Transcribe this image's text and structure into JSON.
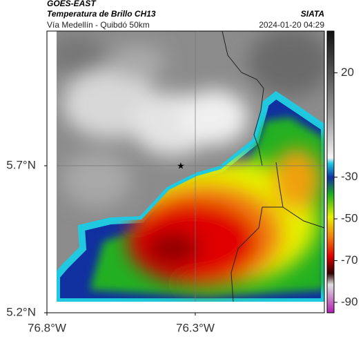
{
  "header": {
    "source": "GOES-EAST",
    "title": "Temperatura de Brillo CH13",
    "brand": "SIATA",
    "subtitle": "Vía Medellín - Quibdó 50km",
    "timestamp": "2024-01-20 04:29"
  },
  "map": {
    "xlim": [
      -76.8,
      -75.865
    ],
    "ylim": [
      5.2,
      6.158
    ],
    "xticks": [
      {
        "value": -76.8,
        "label": "76.8°W"
      },
      {
        "value": -76.3,
        "label": "76.3°W"
      }
    ],
    "yticks": [
      {
        "value": 5.7,
        "label": "5.7°N"
      },
      {
        "value": 5.2,
        "label": "5.2°N"
      }
    ]
  },
  "colorbar": {
    "lim": [
      -95,
      40
    ],
    "ticks": [
      20,
      -30,
      -50,
      -70,
      -90
    ]
  }
}
